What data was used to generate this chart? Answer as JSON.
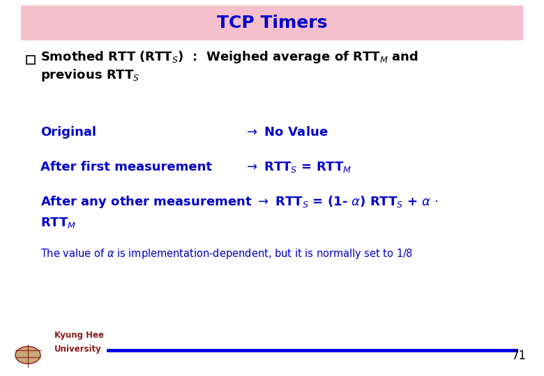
{
  "title": "TCP Timers",
  "title_color": "#0000CD",
  "title_bg_color": "#F5C0CB",
  "title_fontsize": 18,
  "background_color": "#FFFFFF",
  "blue_color": "#0000CC",
  "black_color": "#000000",
  "slide_number": "71",
  "footer_line_color": "#0000EE",
  "university_text_1": "Kyung Hee",
  "university_text_2": "University",
  "university_color": "#8B1A1A"
}
